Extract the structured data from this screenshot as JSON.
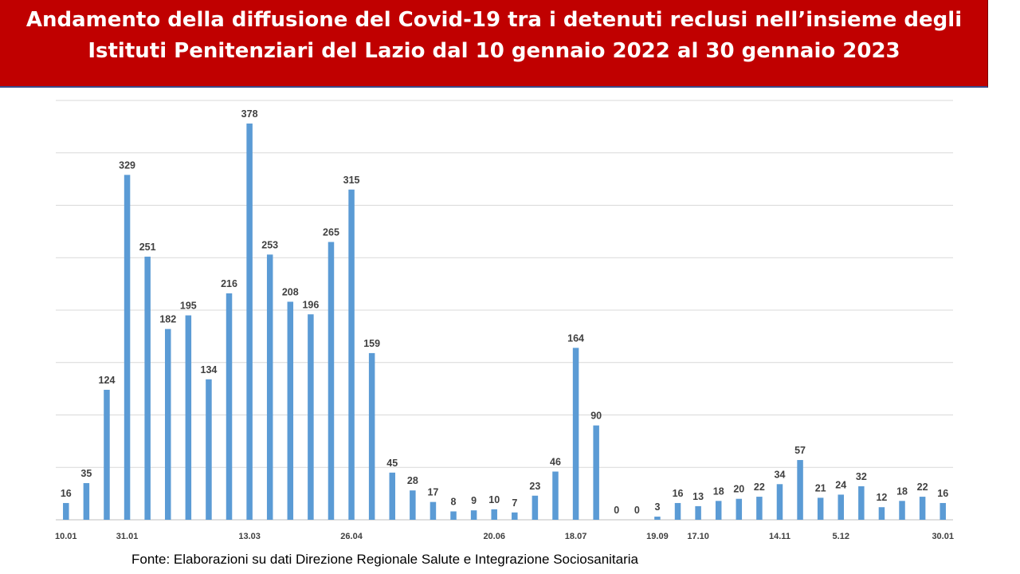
{
  "title": "Andamento della diffusione del Covid-19 tra i detenuti reclusi nell’insieme degli Istituti Penitenziari del Lazio dal 10 gennaio 2022 al 30 gennaio 2023",
  "source_note": "Fonte: Elaborazioni su dati Direzione Regionale Salute e Integrazione Sociosanitaria",
  "colors": {
    "banner": "#c00000",
    "bar": "#5b9bd5",
    "title_text": "#ffffff"
  },
  "chart_data": {
    "type": "bar",
    "title": "Andamento della diffusione del Covid-19 tra i detenuti reclusi nell’insieme degli Istituti Penitenziari del Lazio dal 10 gennaio 2022 al 30 gennaio 2023",
    "xlabel": "",
    "ylabel": "",
    "ylim": [
      0,
      400
    ],
    "grid": true,
    "legend": "none",
    "values": [
      16,
      35,
      124,
      329,
      251,
      182,
      195,
      134,
      216,
      378,
      253,
      208,
      196,
      265,
      315,
      159,
      45,
      28,
      17,
      8,
      9,
      10,
      7,
      23,
      46,
      164,
      90,
      0,
      0,
      3,
      16,
      13,
      18,
      20,
      22,
      34,
      57,
      21,
      24,
      32,
      12,
      18,
      22,
      16
    ],
    "tick_labels": [
      {
        "index": 0,
        "label": "10.01"
      },
      {
        "index": 3,
        "label": "31.01"
      },
      {
        "index": 9,
        "label": "13.03"
      },
      {
        "index": 14,
        "label": "26.04"
      },
      {
        "index": 21,
        "label": "20.06"
      },
      {
        "index": 25,
        "label": "18.07"
      },
      {
        "index": 29,
        "label": "19.09"
      },
      {
        "index": 31,
        "label": "17.10"
      },
      {
        "index": 35,
        "label": "14.11"
      },
      {
        "index": 38,
        "label": "5.12"
      },
      {
        "index": 43,
        "label": "30.01"
      }
    ]
  }
}
